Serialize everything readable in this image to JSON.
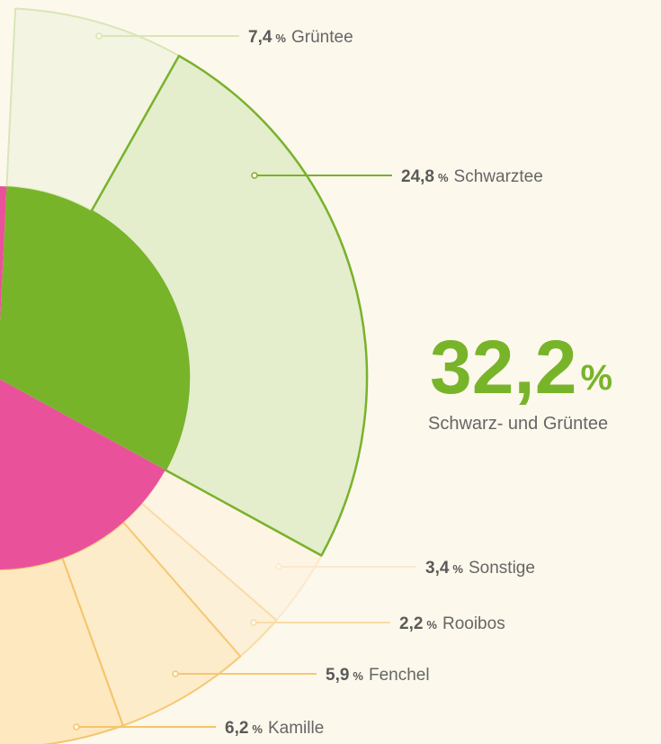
{
  "chart_data": {
    "type": "sunburst",
    "unit": "%",
    "inner": {
      "labels": [
        "Schwarz- und Grüntee",
        null
      ],
      "values": [
        32.2,
        67.8
      ],
      "value_labels": [
        "32,2",
        null
      ],
      "colors": [
        "#78b42a",
        "#e9529a"
      ]
    },
    "outer": {
      "categories": [
        "Grüntee",
        "Schwarztee",
        "Sonstige",
        "Rooibos",
        "Fenchel",
        "Kamille"
      ],
      "values": [
        7.4,
        24.8,
        3.4,
        2.2,
        5.9,
        6.2
      ],
      "value_labels": [
        "7,4",
        "24,8",
        "3,4",
        "2,2",
        "5,9",
        "6,2"
      ],
      "colors": [
        "#f3f4e1",
        "#e4edcc",
        "#fef4e3",
        "#fdf0d8",
        "#fdecca",
        "#fde8c0"
      ],
      "strokes": [
        "#d8e6b8",
        "#78b22b",
        "#fbe9cc",
        "#f9dca6",
        "#f5c874",
        "#f5c46a"
      ]
    }
  }
}
